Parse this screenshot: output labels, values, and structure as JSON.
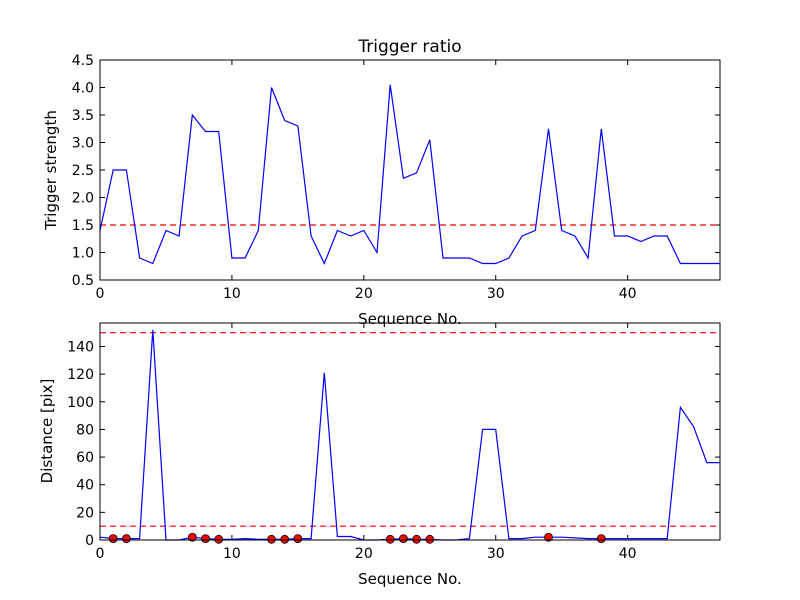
{
  "chart_data": [
    {
      "type": "line",
      "title": "Trigger ratio",
      "xlabel": "Sequence No.",
      "ylabel": "Trigger strength",
      "xlim": [
        0,
        47
      ],
      "ylim": [
        0.5,
        4.5
      ],
      "xticks": [
        0,
        10,
        20,
        30,
        40
      ],
      "xtick_labels": [
        "0",
        "10",
        "20",
        "30",
        "40"
      ],
      "yticks": [
        0.5,
        1.0,
        1.5,
        2.0,
        2.5,
        3.0,
        3.5,
        4.0,
        4.5
      ],
      "ytick_labels": [
        "0.5",
        "1.0",
        "1.5",
        "2.0",
        "2.5",
        "3.0",
        "3.5",
        "4.0",
        "4.5"
      ],
      "series_color": "#0000ff",
      "threshold_color": "#ff0000",
      "thresholds": [
        1.5
      ],
      "x": [
        0,
        1,
        2,
        3,
        4,
        5,
        6,
        7,
        8,
        9,
        10,
        11,
        12,
        13,
        14,
        15,
        16,
        17,
        18,
        19,
        20,
        21,
        22,
        23,
        24,
        25,
        26,
        27,
        28,
        29,
        30,
        31,
        32,
        33,
        34,
        35,
        36,
        37,
        38,
        39,
        40,
        41,
        42,
        43,
        44,
        45,
        46,
        47
      ],
      "values": [
        1.4,
        2.5,
        2.5,
        0.9,
        0.8,
        1.4,
        1.3,
        3.5,
        3.2,
        3.2,
        0.9,
        0.9,
        1.4,
        4.0,
        3.4,
        3.3,
        1.3,
        0.8,
        1.4,
        1.3,
        1.4,
        1.0,
        4.05,
        2.35,
        2.45,
        3.05,
        0.9,
        0.9,
        0.9,
        0.8,
        0.8,
        0.9,
        1.3,
        1.4,
        3.25,
        1.4,
        1.3,
        0.9,
        3.25,
        1.3,
        1.3,
        1.2,
        1.3,
        1.3,
        0.8,
        0.8,
        0.8,
        0.8
      ],
      "grid": false
    },
    {
      "type": "line",
      "title": "",
      "xlabel": "Sequence No.",
      "ylabel": "Distance [pix]",
      "xlim": [
        0,
        47
      ],
      "ylim": [
        0,
        157
      ],
      "xticks": [
        0,
        10,
        20,
        30,
        40
      ],
      "xtick_labels": [
        "0",
        "10",
        "20",
        "30",
        "40"
      ],
      "yticks": [
        0,
        20,
        40,
        60,
        80,
        100,
        120,
        140
      ],
      "ytick_labels": [
        "0",
        "20",
        "40",
        "60",
        "80",
        "100",
        "120",
        "140"
      ],
      "series_color": "#0000ff",
      "threshold_color": "#ff0000",
      "marker_color": "#ff0000",
      "thresholds": [
        10,
        150
      ],
      "x": [
        0,
        1,
        2,
        3,
        4,
        5,
        6,
        7,
        8,
        9,
        10,
        11,
        12,
        13,
        14,
        15,
        16,
        17,
        18,
        19,
        20,
        21,
        22,
        23,
        24,
        25,
        26,
        27,
        28,
        29,
        30,
        31,
        32,
        33,
        34,
        35,
        36,
        37,
        38,
        39,
        40,
        41,
        42,
        43,
        44,
        45,
        46,
        47
      ],
      "values": [
        2,
        1,
        1,
        1,
        152,
        0,
        0,
        2,
        1,
        0.5,
        0.5,
        1,
        0.5,
        0.5,
        0.5,
        1,
        1,
        121,
        2.5,
        2.5,
        0,
        0,
        0.5,
        1,
        0.5,
        0.5,
        0,
        0,
        1,
        80,
        80,
        1,
        1,
        2,
        2,
        2,
        1.5,
        1,
        1,
        1,
        1,
        1,
        1,
        1,
        96,
        82,
        56,
        56
      ],
      "markers": [
        {
          "x": 1,
          "y": 1
        },
        {
          "x": 2,
          "y": 1
        },
        {
          "x": 7,
          "y": 2
        },
        {
          "x": 8,
          "y": 1
        },
        {
          "x": 9,
          "y": 0.5
        },
        {
          "x": 13,
          "y": 0.5
        },
        {
          "x": 14,
          "y": 0.5
        },
        {
          "x": 15,
          "y": 1
        },
        {
          "x": 22,
          "y": 0.5
        },
        {
          "x": 23,
          "y": 1
        },
        {
          "x": 24,
          "y": 0.5
        },
        {
          "x": 25,
          "y": 0.5
        },
        {
          "x": 34,
          "y": 2
        },
        {
          "x": 38,
          "y": 1
        }
      ],
      "grid": false
    }
  ]
}
